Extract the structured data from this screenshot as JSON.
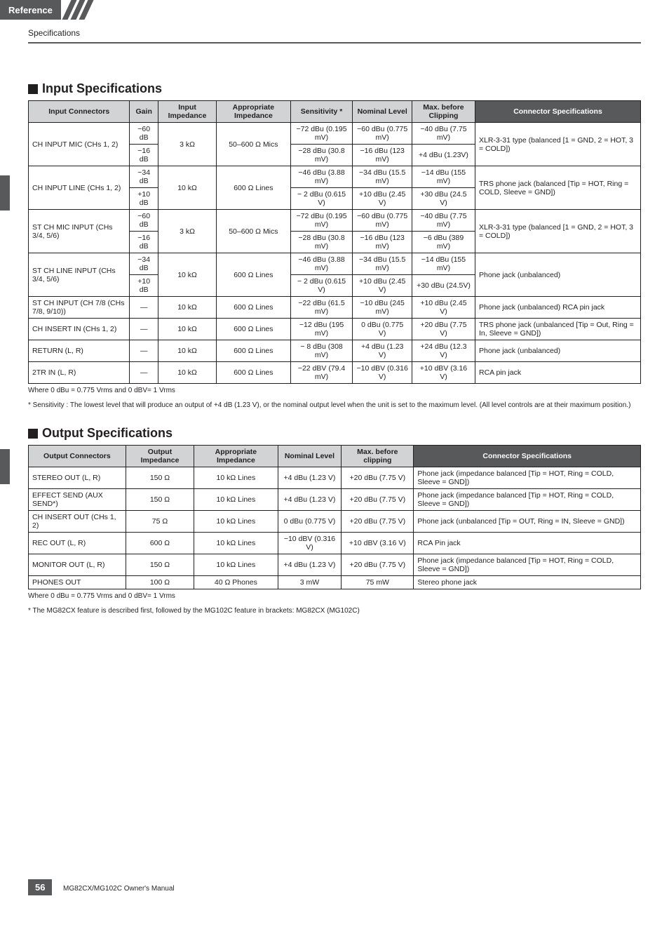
{
  "header": {
    "tab": "Reference",
    "subtitle": "Specifications"
  },
  "sections": {
    "input": {
      "title": "Input Specifications",
      "columns": [
        "Input Connectors",
        "Gain",
        "Input Impedance",
        "Appropriate Impedance",
        "Sensitivity *",
        "Nominal Level",
        "Max. before Clipping",
        "Connector Specifications"
      ],
      "rows": [
        {
          "c0": "CH INPUT MIC (CHs 1, 2)",
          "c0_rowspan": 2,
          "c1": "−60 dB",
          "c2": "3 kΩ",
          "c2_rowspan": 2,
          "c3": "50–600 Ω Mics",
          "c3_rowspan": 2,
          "c4": "−72 dBu (0.195 mV)",
          "c5": "−60 dBu (0.775 mV)",
          "c6": "−40 dBu (7.75 mV)",
          "c7": "XLR-3-31 type (balanced [1 = GND, 2 = HOT, 3 = COLD])",
          "c7_rowspan": 2
        },
        {
          "c1": "−16 dB",
          "c4": "−28 dBu (30.8 mV)",
          "c5": "−16 dBu (123 mV)",
          "c6": "+4 dBu (1.23V)"
        },
        {
          "c0": "CH INPUT LINE (CHs 1, 2)",
          "c0_rowspan": 2,
          "c1": "−34 dB",
          "c2": "10 kΩ",
          "c2_rowspan": 2,
          "c3": "600 Ω Lines",
          "c3_rowspan": 2,
          "c4": "−46 dBu (3.88 mV)",
          "c5": "−34 dBu (15.5 mV)",
          "c6": "−14 dBu (155 mV)",
          "c7": "TRS phone jack (balanced [Tip = HOT, Ring = COLD, Sleeve = GND])",
          "c7_rowspan": 2
        },
        {
          "c1": "+10 dB",
          "c4": "− 2 dBu (0.615 V)",
          "c5": "+10 dBu (2.45 V)",
          "c6": "+30 dBu (24.5 V)"
        },
        {
          "c0": "ST CH MIC INPUT (CHs 3/4, 5/6)",
          "c0_rowspan": 2,
          "c1": "−60 dB",
          "c2": "3 kΩ",
          "c2_rowspan": 2,
          "c3": "50–600 Ω Mics",
          "c3_rowspan": 2,
          "c4": "−72 dBu (0.195 mV)",
          "c5": "−60 dBu (0.775 mV)",
          "c6": "−40 dBu (7.75 mV)",
          "c7": "XLR-3-31 type (balanced [1 = GND, 2 = HOT, 3 = COLD])",
          "c7_rowspan": 2
        },
        {
          "c1": "−16 dB",
          "c4": "−28 dBu (30.8 mV)",
          "c5": "−16 dBu (123 mV)",
          "c6": "−6 dBu (389 mV)"
        },
        {
          "c0": "ST CH LINE INPUT (CHs 3/4, 5/6)",
          "c0_rowspan": 2,
          "c1": "−34 dB",
          "c2": "10 kΩ",
          "c2_rowspan": 2,
          "c3": "600 Ω Lines",
          "c3_rowspan": 2,
          "c4": "−46 dBu (3.88 mV)",
          "c5": "−34 dBu (15.5 mV)",
          "c6": "−14 dBu (155 mV)",
          "c7": "Phone jack (unbalanced)",
          "c7_rowspan": 2
        },
        {
          "c1": "+10 dB",
          "c4": "− 2 dBu (0.615 V)",
          "c5": "+10 dBu (2.45 V)",
          "c6": "+30 dBu (24.5V)"
        },
        {
          "c0": "ST CH INPUT (CH 7/8 (CHs 7/8, 9/10))",
          "c1": "—",
          "c2": "10 kΩ",
          "c3": "600 Ω Lines",
          "c4": "−22 dBu (61.5 mV)",
          "c5": "−10 dBu (245 mV)",
          "c6": "+10 dBu (2.45 V)",
          "c7": "Phone jack (unbalanced) RCA pin jack"
        },
        {
          "c0": "CH INSERT IN (CHs 1, 2)",
          "c1": "—",
          "c2": "10 kΩ",
          "c3": "600 Ω Lines",
          "c4": "−12 dBu (195 mV)",
          "c5": "0 dBu (0.775 V)",
          "c6": "+20 dBu (7.75 V)",
          "c7": "TRS phone jack (unbalanced [Tip = Out, Ring = In, Sleeve = GND])"
        },
        {
          "c0": "RETURN (L, R)",
          "c1": "—",
          "c2": "10 kΩ",
          "c3": "600 Ω Lines",
          "c4": "− 8 dBu (308 mV)",
          "c5": "+4 dBu (1.23 V)",
          "c6": "+24 dBu (12.3 V)",
          "c7": "Phone jack (unbalanced)"
        },
        {
          "c0": "2TR IN (L, R)",
          "c1": "—",
          "c2": "10 kΩ",
          "c3": "600 Ω Lines",
          "c4": "−22 dBV (79.4 mV)",
          "c5": "−10 dBV (0.316 V)",
          "c6": "+10 dBV (3.16 V)",
          "c7": "RCA pin jack"
        }
      ],
      "note1": "Where 0 dBu = 0.775 Vrms and 0 dBV= 1 Vrms",
      "note2": "* Sensitivity : The lowest level that will produce an output of +4 dB (1.23 V), or the nominal output level when the unit is set to the maximum level. (All level controls are at their maximum position.)"
    },
    "output": {
      "title": "Output Specifications",
      "columns": [
        "Output Connectors",
        "Output Impedance",
        "Appropriate Impedance",
        "Nominal Level",
        "Max. before clipping",
        "Connector Specifications"
      ],
      "rows": [
        {
          "c0": "STEREO OUT (L, R)",
          "c1": "150 Ω",
          "c2": "10 kΩ Lines",
          "c3": "+4 dBu (1.23 V)",
          "c4": "+20 dBu (7.75 V)",
          "c5": "Phone jack (impedance balanced [Tip = HOT, Ring = COLD, Sleeve = GND])"
        },
        {
          "c0": "EFFECT SEND (AUX SEND*)",
          "c1": "150 Ω",
          "c2": "10 kΩ Lines",
          "c3": "+4 dBu (1.23 V)",
          "c4": "+20 dBu (7.75 V)",
          "c5": "Phone jack (impedance balanced [Tip = HOT, Ring = COLD, Sleeve = GND])"
        },
        {
          "c0": "CH INSERT OUT (CHs 1, 2)",
          "c1": "75 Ω",
          "c2": "10 kΩ Lines",
          "c3": "0 dBu (0.775 V)",
          "c4": "+20 dBu (7.75 V)",
          "c5": "Phone jack (unbalanced [Tip = OUT, Ring = IN, Sleeve = GND])"
        },
        {
          "c0": "REC OUT (L, R)",
          "c1": "600 Ω",
          "c2": "10 kΩ Lines",
          "c3": "−10 dBV (0.316 V)",
          "c4": "+10 dBV (3.16 V)",
          "c5": "RCA Pin jack"
        },
        {
          "c0": "MONITOR OUT (L, R)",
          "c1": "150 Ω",
          "c2": "10 kΩ Lines",
          "c3": "+4 dBu (1.23 V)",
          "c4": "+20 dBu (7.75 V)",
          "c5": "Phone jack (impedance balanced [Tip = HOT, Ring = COLD, Sleeve = GND])"
        },
        {
          "c0": "PHONES OUT",
          "c1": "100 Ω",
          "c2": "40 Ω Phones",
          "c3": "3 mW",
          "c4": "75 mW",
          "c5": "Stereo phone jack"
        }
      ],
      "note1": "Where 0 dBu = 0.775 Vrms and 0 dBV= 1 Vrms",
      "note2": "* The MG82CX feature is described first, followed by the MG102C feature in brackets: MG82CX (MG102C)"
    }
  },
  "footer": {
    "page": "56",
    "manual": "MG82CX/MG102C Owner's Manual"
  },
  "styles": {
    "header_bg": "#d1d3d4",
    "header_dark_bg": "#58595b",
    "body_font_size": 10.5,
    "title_font_size": 18
  }
}
